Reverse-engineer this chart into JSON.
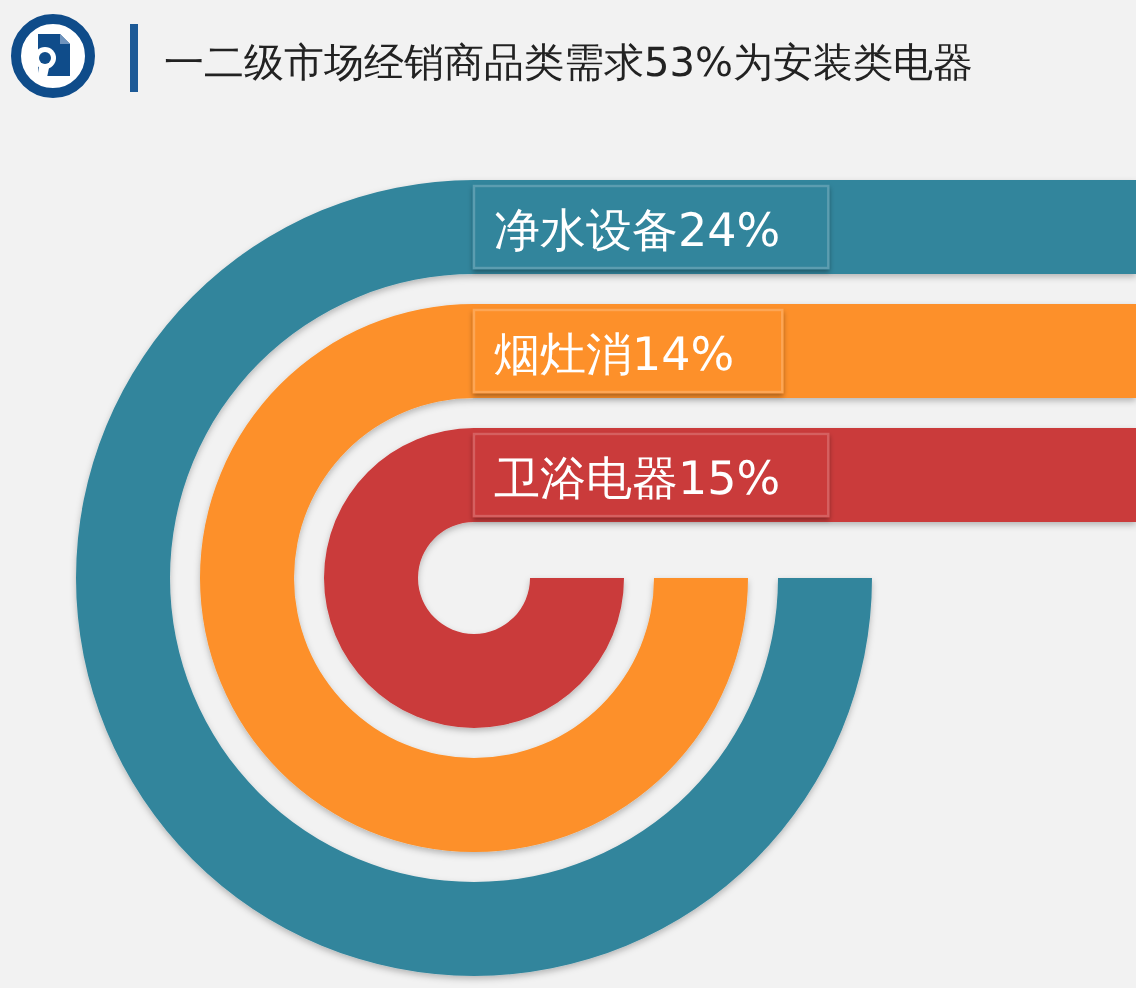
{
  "chart_data": {
    "type": "other",
    "title": "一二级市场经销商品类需求53%为安装类电器",
    "categories": [
      "净水设备",
      "烟灶消",
      "卫浴电器"
    ],
    "values": [
      24,
      14,
      15
    ],
    "value_labels": [
      "24%",
      "14%",
      "15%"
    ],
    "colors": [
      "#32859c",
      "#fd9029",
      "#ca3a3a"
    ]
  }
}
